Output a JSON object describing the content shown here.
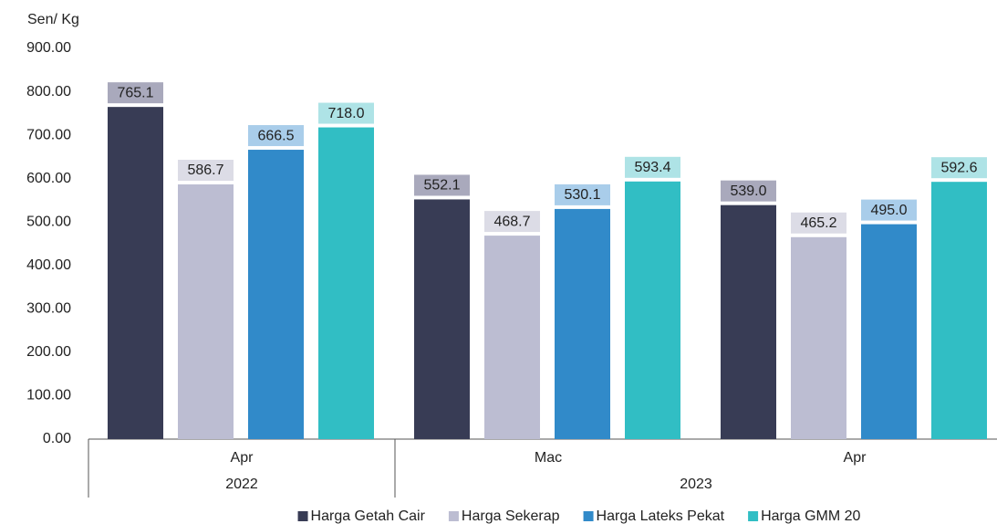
{
  "chart_data": {
    "type": "bar",
    "y_label": "Sen/ Kg",
    "categories": [
      "Apr",
      "Mac",
      "Apr"
    ],
    "x_groups": [
      {
        "label": "2022",
        "count": 1
      },
      {
        "label": "2023",
        "count": 2
      }
    ],
    "series": [
      {
        "name": "Harga Getah Cair",
        "color": "#383c55",
        "label_bg": "#a9a9bc",
        "values": [
          765.1,
          552.1,
          539.0
        ],
        "value_labels": [
          "765.1",
          "552.1",
          "539.0"
        ]
      },
      {
        "name": "Harga Sekerap",
        "color": "#bcbdd2",
        "label_bg": "#dcdce6",
        "values": [
          586.7,
          468.7,
          465.2
        ],
        "value_labels": [
          "586.7",
          "468.7",
          "465.2"
        ]
      },
      {
        "name": "Harga Lateks Pekat",
        "color": "#318ac9",
        "label_bg": "#a9cdea",
        "values": [
          666.5,
          530.1,
          495.0
        ],
        "value_labels": [
          "666.5",
          "530.1",
          "495.0"
        ]
      },
      {
        "name": "Harga GMM 20",
        "color": "#31bec4",
        "label_bg": "#aee3e6",
        "values": [
          718.0,
          593.4,
          592.6
        ],
        "value_labels": [
          "718.0",
          "593.4",
          "592.6"
        ]
      }
    ],
    "ylim": [
      0,
      900
    ],
    "yticks": [
      {
        "value": 0,
        "label": "0.00"
      },
      {
        "value": 100,
        "label": "100.00"
      },
      {
        "value": 200,
        "label": "200.00"
      },
      {
        "value": 300,
        "label": "300.00"
      },
      {
        "value": 400,
        "label": "400.00"
      },
      {
        "value": 500,
        "label": "500.00"
      },
      {
        "value": 600,
        "label": "600.00"
      },
      {
        "value": 700,
        "label": "700.00"
      },
      {
        "value": 800,
        "label": "800.00"
      },
      {
        "value": 900,
        "label": "900.00"
      }
    ],
    "grid": false,
    "legend": "bottom"
  }
}
